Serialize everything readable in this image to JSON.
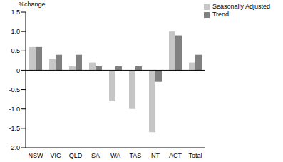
{
  "chart_data": {
    "type": "bar",
    "y_label": "%change",
    "categories": [
      "NSW",
      "VIC",
      "QLD",
      "SA",
      "WA",
      "TAS",
      "NT",
      "ACT",
      "Total"
    ],
    "series": [
      {
        "name": "Seasonally Adjusted",
        "color": "#c6c6c6",
        "values": [
          0.6,
          0.3,
          0.1,
          0.2,
          -0.8,
          -1.0,
          -1.6,
          1.0,
          0.2
        ]
      },
      {
        "name": "Trend",
        "color": "#808080",
        "values": [
          0.6,
          0.4,
          0.4,
          0.1,
          0.1,
          0.1,
          -0.3,
          0.9,
          0.4
        ]
      }
    ],
    "ylim": [
      -2,
      1.5
    ],
    "yticks": [
      {
        "value": -2,
        "label": "-2.0"
      },
      -1.5,
      {
        "value": -1,
        "label": "-1.0"
      },
      -0.5,
      0,
      0.5,
      {
        "value": 1,
        "label": "1.0"
      },
      1.5
    ],
    "grid": false,
    "legend": "top-right"
  }
}
